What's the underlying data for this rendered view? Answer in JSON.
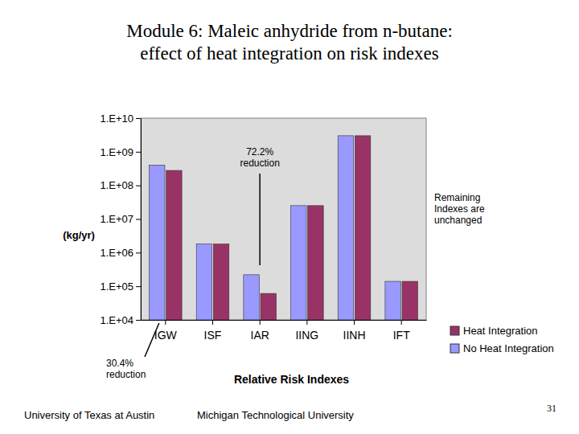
{
  "chart_data": {
    "type": "bar",
    "title": [
      "Module 6: Maleic anhydride from n-butane:",
      "effect of heat integration on risk indexes"
    ],
    "y_label": "(kg/yr)",
    "x_label": "Relative Risk Indexes",
    "categories": [
      "IGW",
      "ISF",
      "IAR",
      "IING",
      "IINH",
      "IFT"
    ],
    "series": [
      {
        "name": "No Heat Integration",
        "color": "#9999ff",
        "values": [
          400000000,
          1800000,
          220000,
          25000000,
          3000000000,
          140000
        ]
      },
      {
        "name": "Heat Integration",
        "color": "#993366",
        "values": [
          278400000,
          1800000,
          61160,
          25000000,
          3000000000,
          140000
        ]
      }
    ],
    "log": "y",
    "ylim": [
      10000,
      10000000000
    ],
    "yticks": [
      {
        "value": 10000,
        "label": "1.E+04"
      },
      {
        "value": 100000,
        "label": "1.E+05"
      },
      {
        "value": 1000000,
        "label": "1.E+06"
      },
      {
        "value": 10000000,
        "label": "1.E+07"
      },
      {
        "value": 100000000,
        "label": "1.E+08"
      },
      {
        "value": 1000000000,
        "label": "1.E+09"
      },
      {
        "value": 10000000000,
        "label": "1.E+10"
      }
    ],
    "grid": false,
    "legend": "lower right",
    "annotations": [
      {
        "lines": [
          "72.2%",
          "reduction"
        ]
      },
      {
        "lines": [
          "Remaining",
          "Indexes are",
          "unchanged"
        ]
      },
      {
        "lines": [
          "30.4%",
          "reduction"
        ]
      }
    ],
    "footer": [
      "University of Texas at Austin",
      "Michigan Technological University"
    ],
    "page_number": 31
  }
}
